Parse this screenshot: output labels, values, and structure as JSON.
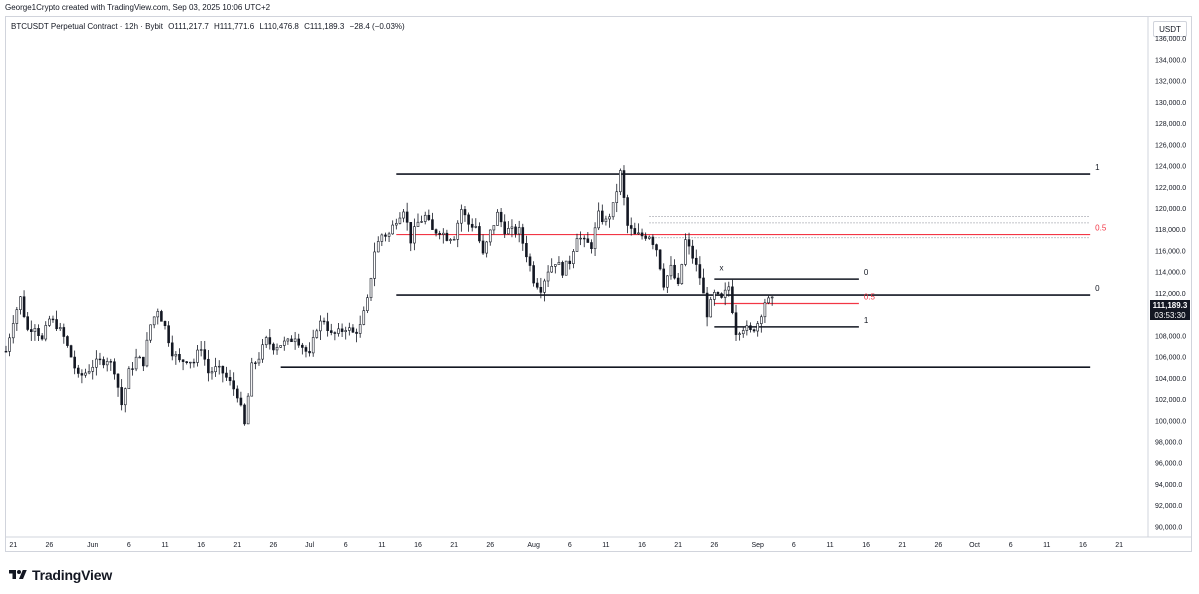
{
  "header": {
    "credit": "George1Crypto created with TradingView.com, Sep 03, 2025 10:06 UTC+2"
  },
  "symbol": {
    "name": "BTCUSDT Perpetual Contract · 12h · Bybit",
    "open": "O111,217.7",
    "high": "H111,771.6",
    "low": "L110,476.8",
    "close": "C111,189.3",
    "change": "−28.4 (−0.03%)"
  },
  "price_axis": {
    "unit": "USDT",
    "last_price": "111,189.3",
    "countdown": "03:53:30"
  },
  "brand": {
    "name": "TradingView"
  },
  "colors": {
    "candle": "#131722",
    "fib_half": "#f23645",
    "level_line": "#131722",
    "dotted": "#9598a1"
  },
  "chart_data": {
    "type": "candlestick",
    "interval": "12h",
    "ylim": [
      89000,
      138000
    ],
    "y_ticks": [
      90000,
      92000,
      94000,
      96000,
      98000,
      100000,
      102000,
      104000,
      106000,
      108000,
      110000,
      112000,
      114000,
      116000,
      118000,
      120000,
      122000,
      124000,
      126000,
      128000,
      130000,
      132000,
      134000,
      136000
    ],
    "y_tick_labels": [
      "90,000.0",
      "92,000.0",
      "94,000.0",
      "96,000.0",
      "98,000.0",
      "100,000.0",
      "102,000.0",
      "104,000.0",
      "106,000.0",
      "108,000.0",
      "110,000.0",
      "112,000.0",
      "114,000.0",
      "116,000.0",
      "118,000.0",
      "120,000.0",
      "122,000.0",
      "124,000.0",
      "126,000.0",
      "128,000.0",
      "130,000.0",
      "132,000.0",
      "134,000.0",
      "136,000.0"
    ],
    "x_range": [
      "2025-05-20",
      "2025-10-25"
    ],
    "x_ticks": [
      {
        "date": "2025-05-21",
        "label": "21"
      },
      {
        "date": "2025-05-26",
        "label": "26"
      },
      {
        "date": "2025-06-01",
        "label": "Jun"
      },
      {
        "date": "2025-06-06",
        "label": "6"
      },
      {
        "date": "2025-06-11",
        "label": "11"
      },
      {
        "date": "2025-06-16",
        "label": "16"
      },
      {
        "date": "2025-06-21",
        "label": "21"
      },
      {
        "date": "2025-06-26",
        "label": "26"
      },
      {
        "date": "2025-07-01",
        "label": "Jul"
      },
      {
        "date": "2025-07-06",
        "label": "6"
      },
      {
        "date": "2025-07-11",
        "label": "11"
      },
      {
        "date": "2025-07-16",
        "label": "16"
      },
      {
        "date": "2025-07-21",
        "label": "21"
      },
      {
        "date": "2025-07-26",
        "label": "26"
      },
      {
        "date": "2025-08-01",
        "label": "Aug"
      },
      {
        "date": "2025-08-06",
        "label": "6"
      },
      {
        "date": "2025-08-11",
        "label": "11"
      },
      {
        "date": "2025-08-16",
        "label": "16"
      },
      {
        "date": "2025-08-21",
        "label": "21"
      },
      {
        "date": "2025-08-26",
        "label": "26"
      },
      {
        "date": "2025-09-01",
        "label": "Sep"
      },
      {
        "date": "2025-09-06",
        "label": "6"
      },
      {
        "date": "2025-09-11",
        "label": "11"
      },
      {
        "date": "2025-09-16",
        "label": "16"
      },
      {
        "date": "2025-09-21",
        "label": "21"
      },
      {
        "date": "2025-09-26",
        "label": "26"
      },
      {
        "date": "2025-10-01",
        "label": "Oct"
      },
      {
        "date": "2025-10-06",
        "label": "6"
      },
      {
        "date": "2025-10-11",
        "label": "11"
      },
      {
        "date": "2025-10-16",
        "label": "16"
      },
      {
        "date": "2025-10-21",
        "label": "21"
      },
      {
        "date": "2025-10-26",
        "label": "26"
      }
    ],
    "close_path": [
      [
        "2025-05-20",
        106500
      ],
      [
        "2025-05-21",
        109500
      ],
      [
        "2025-05-22",
        111500
      ],
      [
        "2025-05-23",
        108500
      ],
      [
        "2025-05-24",
        109000
      ],
      [
        "2025-05-25",
        107500
      ],
      [
        "2025-05-26",
        109500
      ],
      [
        "2025-05-27",
        109000
      ],
      [
        "2025-05-28",
        107800
      ],
      [
        "2025-05-29",
        106000
      ],
      [
        "2025-05-30",
        104000
      ],
      [
        "2025-05-31",
        104500
      ],
      [
        "2025-06-01",
        105200
      ],
      [
        "2025-06-02",
        105500
      ],
      [
        "2025-06-03",
        105800
      ],
      [
        "2025-06-04",
        104800
      ],
      [
        "2025-06-05",
        101500
      ],
      [
        "2025-06-06",
        104500
      ],
      [
        "2025-06-07",
        105800
      ],
      [
        "2025-06-08",
        105500
      ],
      [
        "2025-06-09",
        109000
      ],
      [
        "2025-06-10",
        110500
      ],
      [
        "2025-06-11",
        108800
      ],
      [
        "2025-06-12",
        106500
      ],
      [
        "2025-06-13",
        105500
      ],
      [
        "2025-06-14",
        105800
      ],
      [
        "2025-06-15",
        105500
      ],
      [
        "2025-06-16",
        107000
      ],
      [
        "2025-06-17",
        104500
      ],
      [
        "2025-06-18",
        104800
      ],
      [
        "2025-06-19",
        104500
      ],
      [
        "2025-06-20",
        103500
      ],
      [
        "2025-06-21",
        102500
      ],
      [
        "2025-06-22",
        99500
      ],
      [
        "2025-06-23",
        105000
      ],
      [
        "2025-06-24",
        106000
      ],
      [
        "2025-06-25",
        107500
      ],
      [
        "2025-06-26",
        107000
      ],
      [
        "2025-06-27",
        107200
      ],
      [
        "2025-06-28",
        107300
      ],
      [
        "2025-06-29",
        108000
      ],
      [
        "2025-06-30",
        107000
      ],
      [
        "2025-07-01",
        106000
      ],
      [
        "2025-07-02",
        108800
      ],
      [
        "2025-07-03",
        109500
      ],
      [
        "2025-07-04",
        108000
      ],
      [
        "2025-07-05",
        108200
      ],
      [
        "2025-07-06",
        108800
      ],
      [
        "2025-07-07",
        108200
      ],
      [
        "2025-07-08",
        108800
      ],
      [
        "2025-07-09",
        111200
      ],
      [
        "2025-07-10",
        116000
      ],
      [
        "2025-07-11",
        117500
      ],
      [
        "2025-07-12",
        117500
      ],
      [
        "2025-07-13",
        119000
      ],
      [
        "2025-07-14",
        120000
      ],
      [
        "2025-07-15",
        117000
      ],
      [
        "2025-07-16",
        118600
      ],
      [
        "2025-07-17",
        119200
      ],
      [
        "2025-07-18",
        117800
      ],
      [
        "2025-07-19",
        117900
      ],
      [
        "2025-07-20",
        117300
      ],
      [
        "2025-07-21",
        117400
      ],
      [
        "2025-07-22",
        119900
      ],
      [
        "2025-07-23",
        118500
      ],
      [
        "2025-07-24",
        118300
      ],
      [
        "2025-07-25",
        115500
      ],
      [
        "2025-07-26",
        117700
      ],
      [
        "2025-07-27",
        119400
      ],
      [
        "2025-07-28",
        118000
      ],
      [
        "2025-07-29",
        117800
      ],
      [
        "2025-07-30",
        117800
      ],
      [
        "2025-07-31",
        115700
      ],
      [
        "2025-08-01",
        113300
      ],
      [
        "2025-08-02",
        112500
      ],
      [
        "2025-08-03",
        114200
      ],
      [
        "2025-08-04",
        115000
      ],
      [
        "2025-08-05",
        114100
      ],
      [
        "2025-08-06",
        115000
      ],
      [
        "2025-08-07",
        117500
      ],
      [
        "2025-08-08",
        116700
      ],
      [
        "2025-08-09",
        116500
      ],
      [
        "2025-08-10",
        119300
      ],
      [
        "2025-08-11",
        118700
      ],
      [
        "2025-08-12",
        120100
      ],
      [
        "2025-08-13",
        123300
      ],
      [
        "2025-08-14",
        118300
      ],
      [
        "2025-08-15",
        117400
      ],
      [
        "2025-08-16",
        117400
      ],
      [
        "2025-08-17",
        117500
      ],
      [
        "2025-08-18",
        116200
      ],
      [
        "2025-08-19",
        112900
      ],
      [
        "2025-08-20",
        114300
      ],
      [
        "2025-08-21",
        112500
      ],
      [
        "2025-08-22",
        116900
      ],
      [
        "2025-08-23",
        115400
      ],
      [
        "2025-08-24",
        113500
      ],
      [
        "2025-08-25",
        110100
      ],
      [
        "2025-08-26",
        111800
      ],
      [
        "2025-08-27",
        111300
      ],
      [
        "2025-08-28",
        112600
      ],
      [
        "2025-08-29",
        108400
      ],
      [
        "2025-08-30",
        108800
      ],
      [
        "2025-08-31",
        108300
      ],
      [
        "2025-09-01",
        109200
      ],
      [
        "2025-09-02",
        111200
      ],
      [
        "2025-09-03",
        111189
      ]
    ],
    "levels": [
      {
        "label": "1",
        "value": 123200,
        "start": "2025-07-13",
        "end": "2025-10-17",
        "color": "#131722"
      },
      {
        "label": "0.5",
        "value": 117500,
        "start": "2025-07-13",
        "end": "2025-10-17",
        "color": "#f23645"
      },
      {
        "label": "0",
        "value": 111800,
        "start": "2025-07-13",
        "end": "2025-10-17",
        "color": "#131722"
      },
      {
        "label": "",
        "value": 105000,
        "start": "2025-06-27",
        "end": "2025-10-17",
        "color": "#131722"
      },
      {
        "label": "0",
        "value": 113300,
        "start": "2025-08-26",
        "end": "2025-09-15",
        "color": "#131722"
      },
      {
        "label": "0.5",
        "value": 111000,
        "start": "2025-08-26",
        "end": "2025-09-15",
        "color": "#f23645"
      },
      {
        "label": "1",
        "value": 108800,
        "start": "2025-08-26",
        "end": "2025-09-15",
        "color": "#131722"
      }
    ],
    "dotted_levels": [
      {
        "value": 119200,
        "start": "2025-08-17",
        "end": "2025-10-17"
      },
      {
        "value": 118600,
        "start": "2025-08-17",
        "end": "2025-10-17"
      },
      {
        "value": 117200,
        "start": "2025-08-17",
        "end": "2025-10-17"
      }
    ],
    "annotations": [
      {
        "text": "x",
        "date": "2025-08-27",
        "value": 114100
      }
    ]
  }
}
